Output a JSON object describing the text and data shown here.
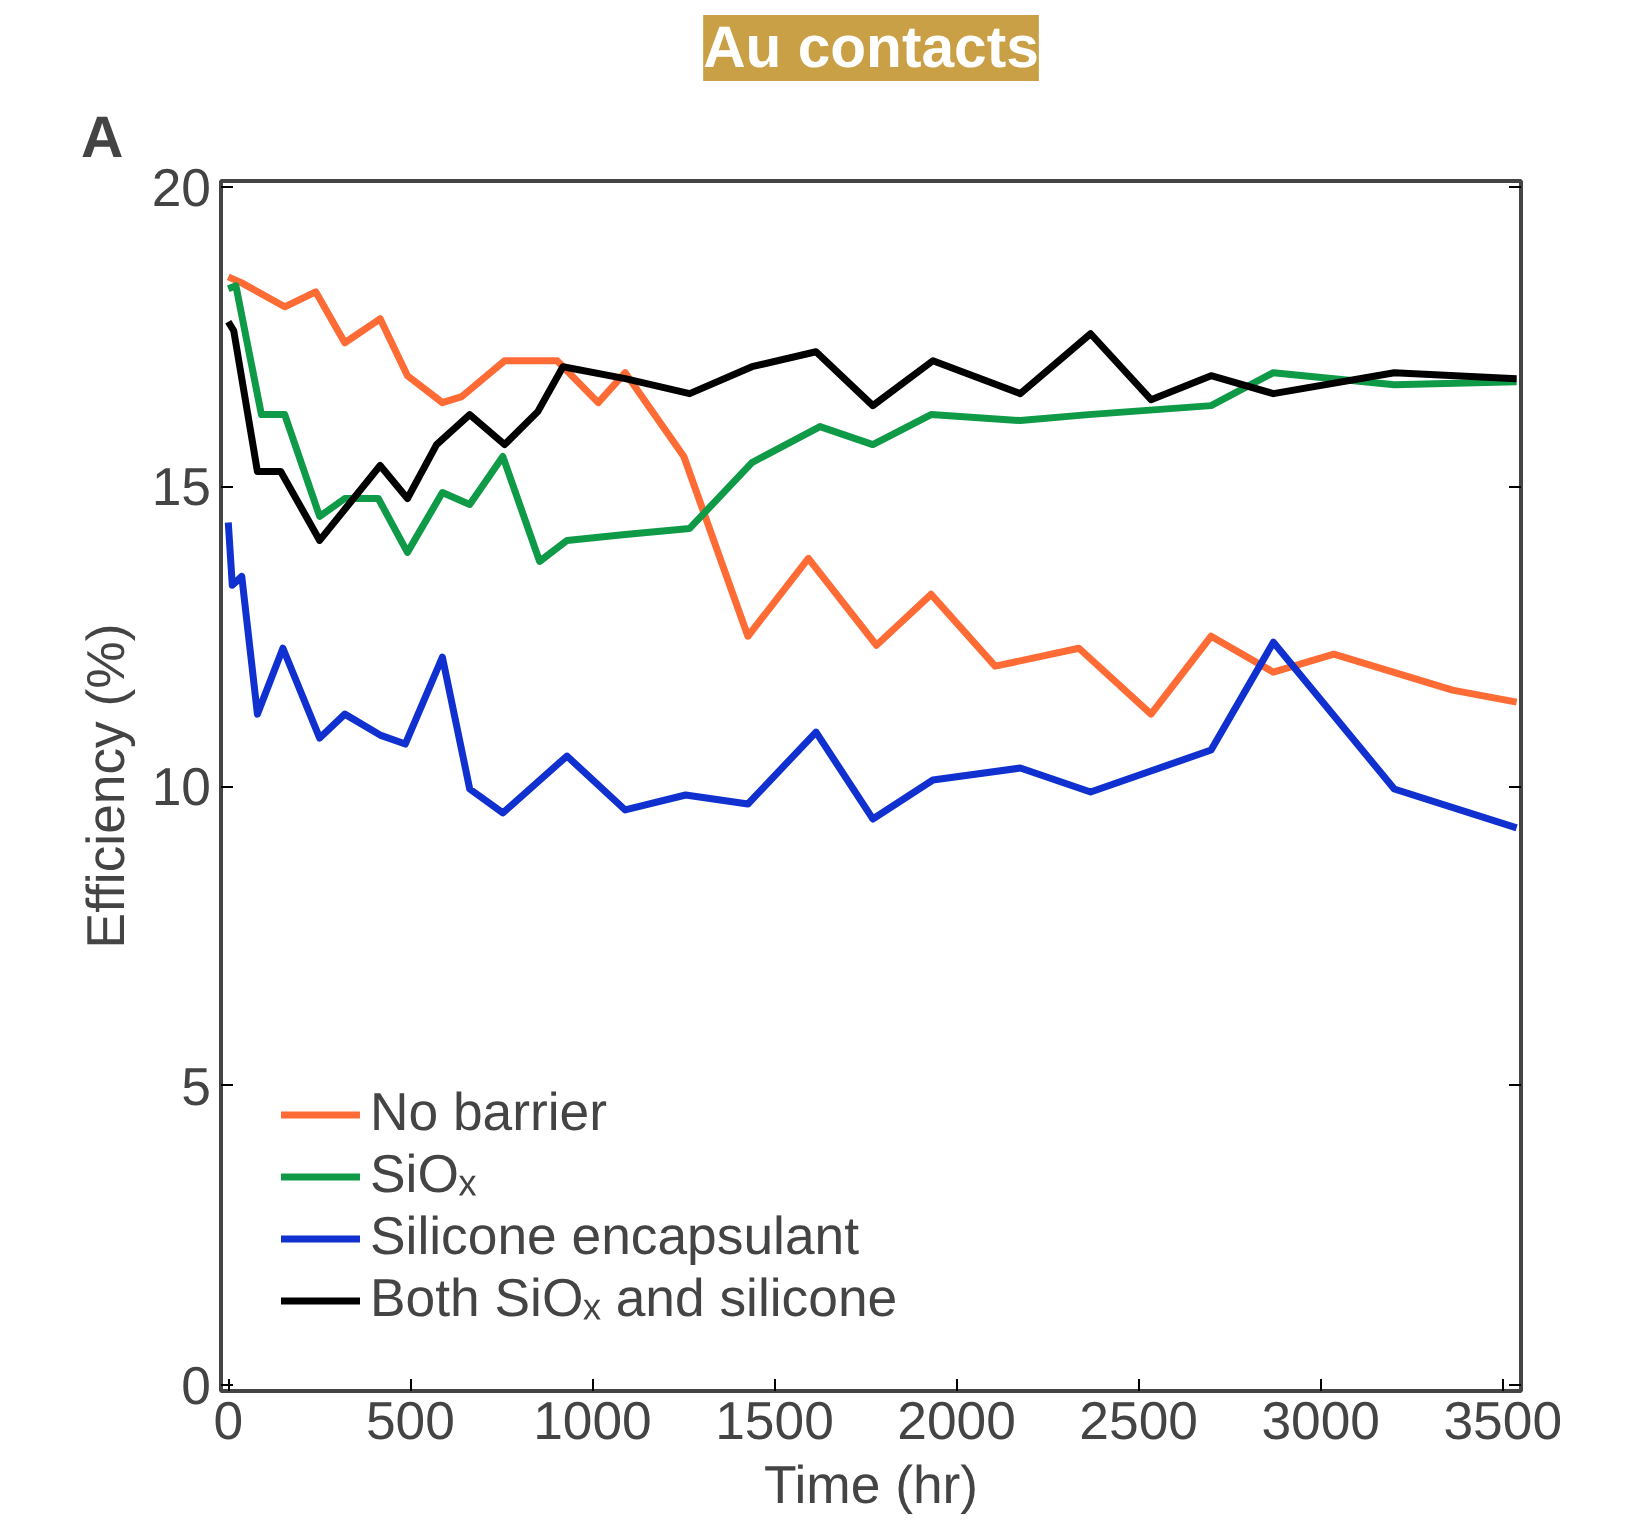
{
  "chart_data": {
    "type": "line",
    "title": "Au contacts",
    "xlabel": "Time (hr)",
    "ylabel": "Efficiency (%)",
    "annotations": [
      "A"
    ],
    "xlim": [
      -20,
      3550
    ],
    "ylim": [
      -0.1,
      20.1
    ],
    "xticks": [
      0,
      500,
      1000,
      1500,
      2000,
      2500,
      3000,
      3500
    ],
    "yticks": [
      0,
      5,
      10,
      15,
      20
    ],
    "grid": false,
    "legend": "bottom left",
    "marker": "none",
    "line_style": "solid",
    "series": [
      {
        "name": "No barrier",
        "color": "#ff6b35",
        "x": [
          0,
          37,
          155,
          240,
          320,
          417,
          492,
          588,
          641,
          759,
          903,
          1016,
          1090,
          1251,
          1427,
          1593,
          1780,
          1930,
          2106,
          2336,
          2534,
          2699,
          2870,
          3036,
          3362,
          3538
        ],
        "values": [
          18.5,
          18.4,
          18.0,
          18.25,
          17.4,
          17.8,
          16.85,
          16.4,
          16.5,
          17.1,
          17.1,
          16.4,
          16.9,
          15.5,
          12.5,
          13.8,
          12.35,
          13.2,
          12.0,
          12.3,
          11.2,
          12.5,
          11.9,
          12.2,
          11.6,
          11.4
        ]
      },
      {
        "name": "SiOₓ",
        "color": "#0f9a48",
        "x": [
          0,
          21,
          91,
          155,
          251,
          320,
          412,
          492,
          588,
          663,
          754,
          855,
          930,
          1090,
          1267,
          1438,
          1625,
          1770,
          1930,
          2175,
          2362,
          2699,
          2870,
          3202,
          3538
        ],
        "values": [
          18.3,
          18.35,
          16.2,
          16.2,
          14.5,
          14.8,
          14.8,
          13.9,
          14.9,
          14.7,
          15.5,
          13.75,
          14.1,
          14.2,
          14.3,
          15.4,
          16.0,
          15.7,
          16.2,
          16.1,
          16.2,
          16.35,
          16.9,
          16.7,
          16.75
        ]
      },
      {
        "name": "Silicone encapsulant",
        "color": "#1030d0",
        "x": [
          0,
          11,
          37,
          80,
          150,
          251,
          320,
          417,
          486,
          588,
          663,
          754,
          930,
          1090,
          1256,
          1427,
          1614,
          1770,
          1935,
          2175,
          2368,
          2699,
          2870,
          3202,
          3538
        ],
        "values": [
          14.4,
          13.35,
          13.5,
          11.2,
          12.3,
          10.8,
          11.2,
          10.85,
          10.7,
          12.15,
          9.95,
          9.55,
          10.5,
          9.6,
          9.85,
          9.7,
          10.9,
          9.45,
          10.1,
          10.3,
          9.9,
          10.6,
          12.4,
          9.95,
          9.3
        ]
      },
      {
        "name": "Both SiOₓ and silicone",
        "color": "#000000",
        "x": [
          0,
          15,
          80,
          144,
          251,
          417,
          492,
          572,
          663,
          759,
          850,
          919,
          1090,
          1267,
          1438,
          1614,
          1770,
          1935,
          2175,
          2368,
          2534,
          2699,
          2870,
          3202,
          3538
        ],
        "values": [
          17.75,
          17.6,
          15.25,
          15.25,
          14.1,
          15.35,
          14.8,
          15.7,
          16.2,
          15.7,
          16.25,
          17.0,
          16.8,
          16.55,
          17.0,
          17.25,
          16.35,
          17.1,
          16.55,
          17.55,
          16.45,
          16.85,
          16.55,
          16.9,
          16.8
        ]
      }
    ]
  }
}
